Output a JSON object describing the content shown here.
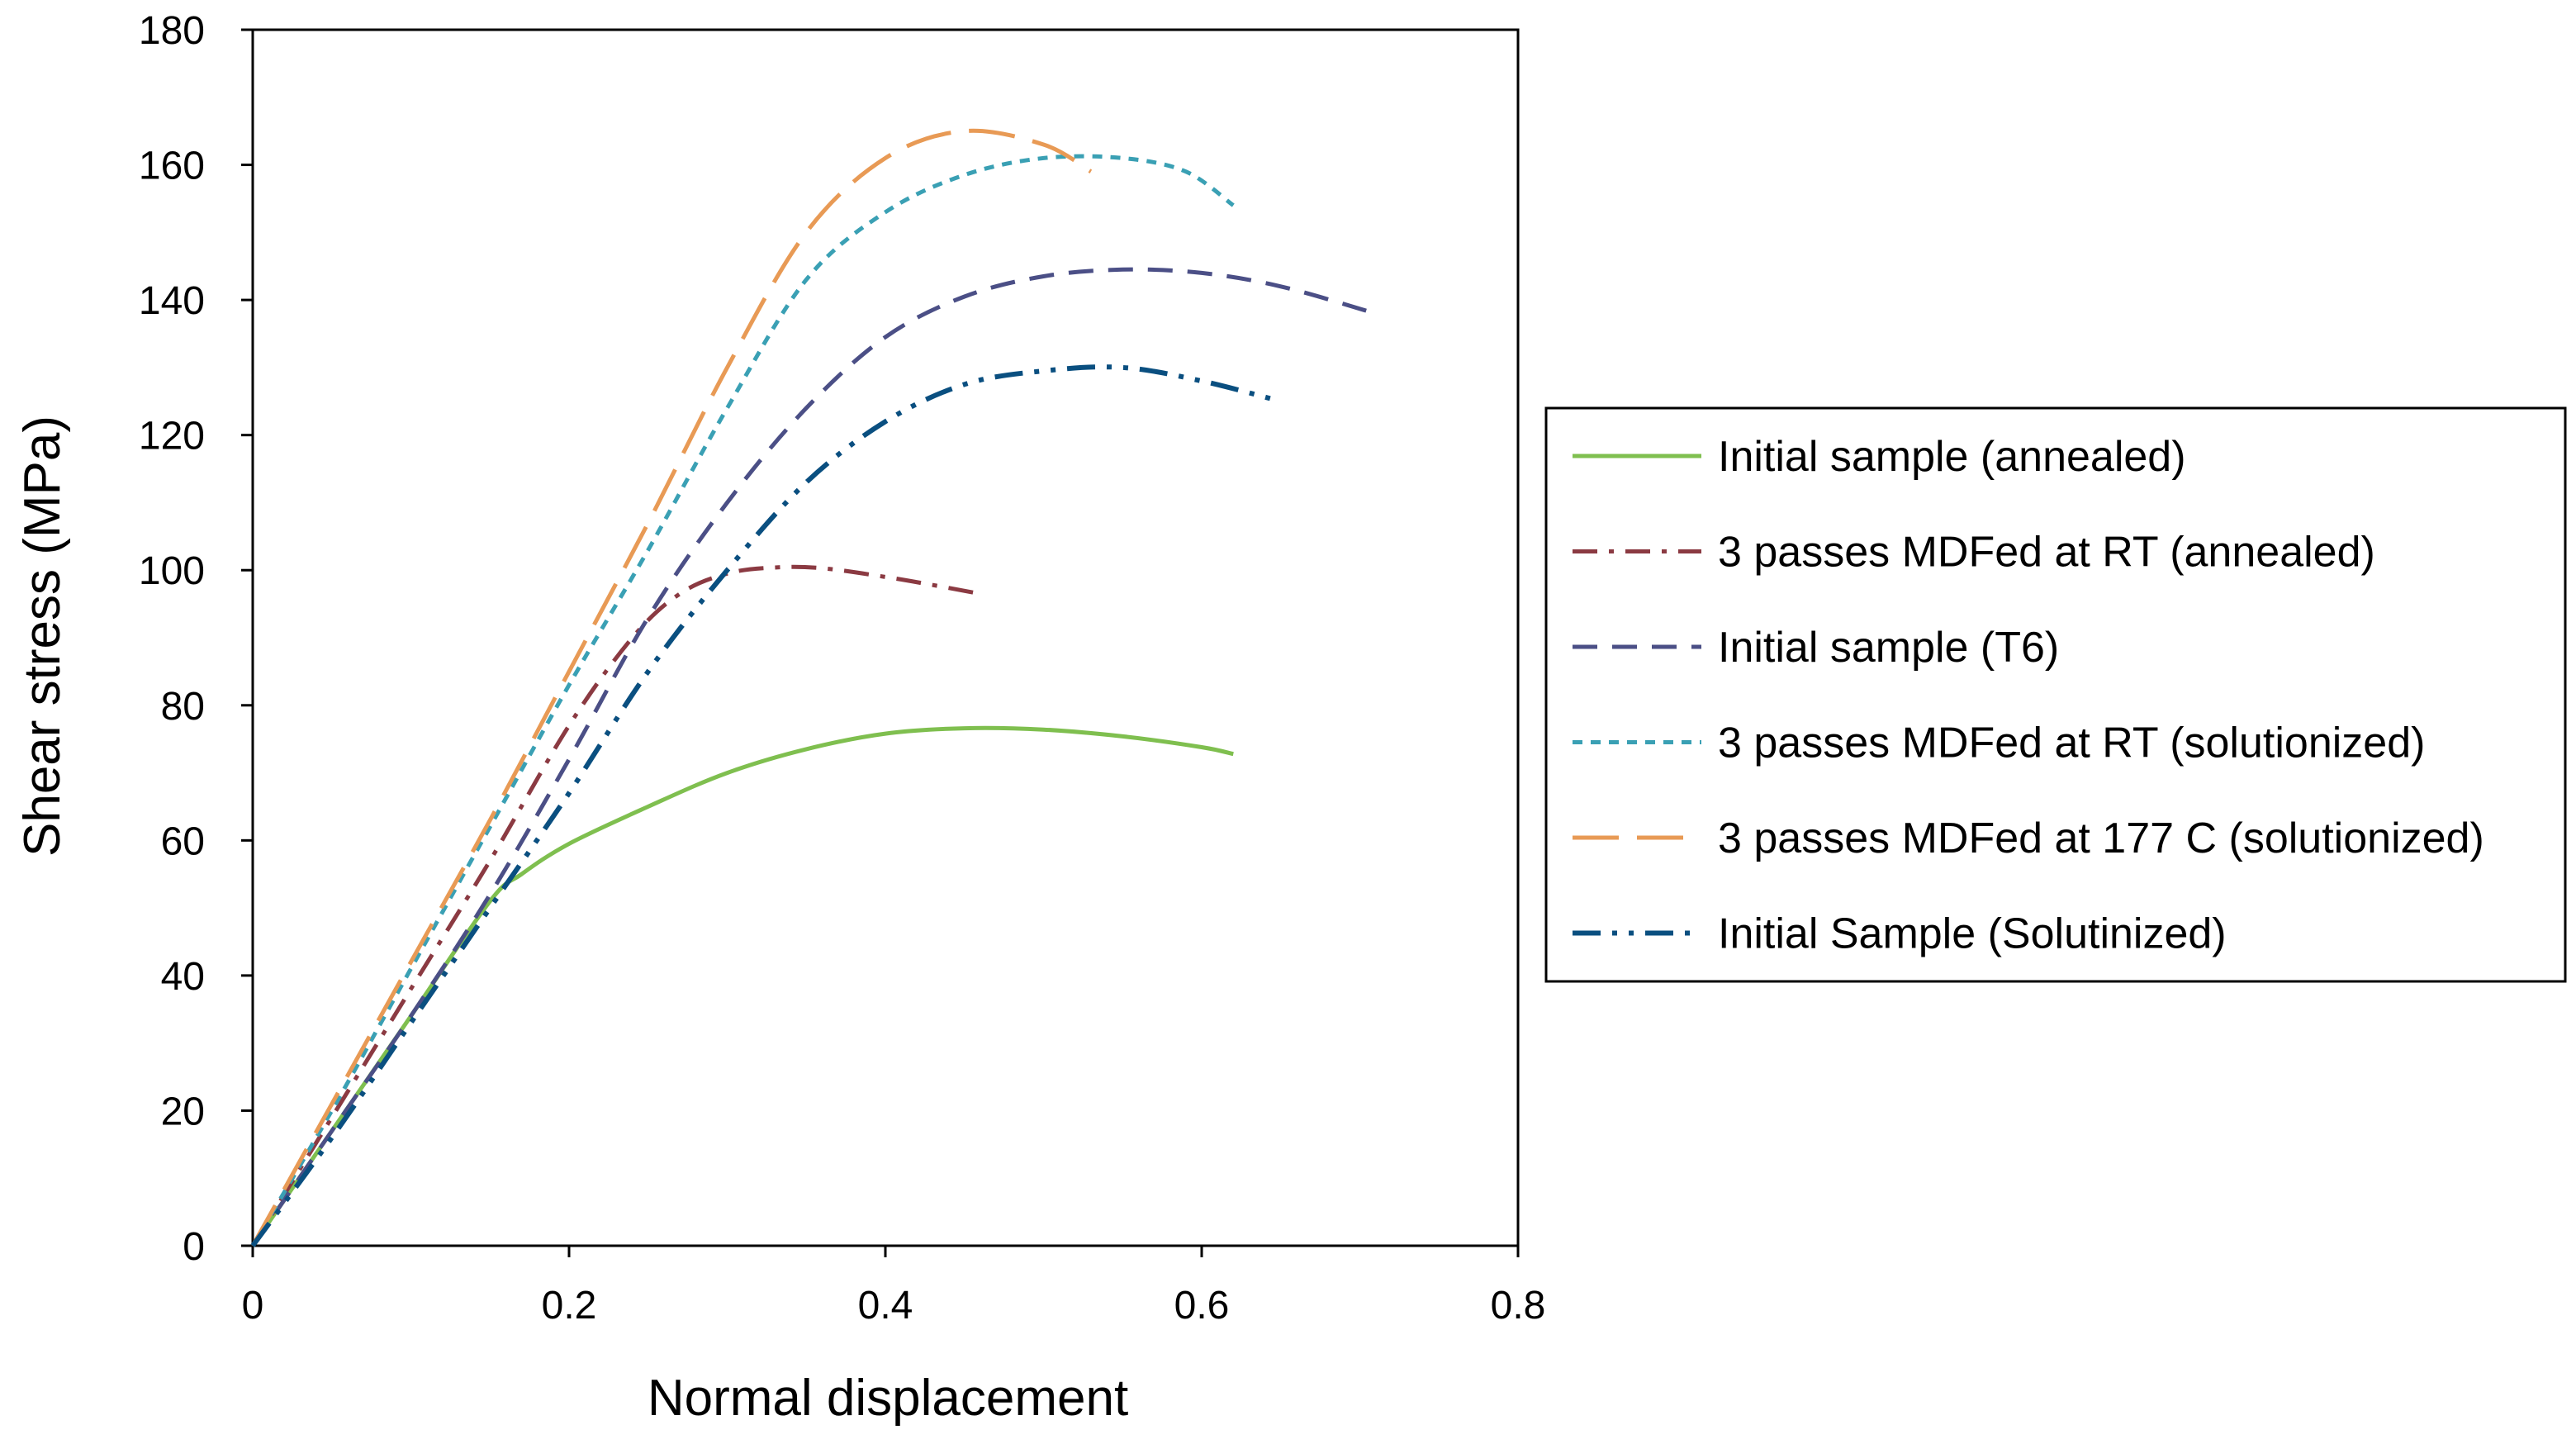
{
  "chart_data": {
    "type": "line",
    "title": "",
    "xlabel": "Normal displacement",
    "ylabel": "Shear stress (MPa)",
    "xlim": [
      0,
      0.8
    ],
    "ylim": [
      0,
      180
    ],
    "xticks": [
      0,
      0.2,
      0.4,
      0.6,
      0.8
    ],
    "yticks": [
      0,
      20,
      40,
      60,
      80,
      100,
      120,
      140,
      160,
      180
    ],
    "xtick_labels": [
      "0",
      "0.2",
      "0.4",
      "0.6",
      "0.8"
    ],
    "ytick_labels": [
      "0",
      "20",
      "40",
      "60",
      "80",
      "100",
      "120",
      "140",
      "160",
      "180"
    ],
    "grid": false,
    "legend_position": "right",
    "series": [
      {
        "name": "Initial sample (annealed)",
        "color": "#7fbf4f",
        "dash": "solid",
        "x": [
          0,
          0.05,
          0.1,
          0.15,
          0.17,
          0.2,
          0.25,
          0.3,
          0.35,
          0.4,
          0.45,
          0.5,
          0.55,
          0.6,
          0.62
        ],
        "y": [
          0,
          17,
          34,
          51,
          55,
          59.5,
          65,
          70,
          73.5,
          75.8,
          76.6,
          76.4,
          75.4,
          73.8,
          72.8
        ]
      },
      {
        "name": "3 passes MDFed at RT (annealed)",
        "color": "#8b3a42",
        "dash": "dashdot",
        "x": [
          0,
          0.05,
          0.1,
          0.15,
          0.2,
          0.24,
          0.27,
          0.3,
          0.33,
          0.36,
          0.4,
          0.43,
          0.46
        ],
        "y": [
          0,
          19,
          38,
          57,
          77,
          90,
          96.5,
          99.5,
          100.4,
          100.3,
          99,
          97.8,
          96.5
        ]
      },
      {
        "name": "Initial sample (T6)",
        "color": "#4b4f86",
        "dash": "dashed",
        "x": [
          0,
          0.05,
          0.1,
          0.15,
          0.2,
          0.25,
          0.3,
          0.35,
          0.4,
          0.45,
          0.5,
          0.55,
          0.6,
          0.65,
          0.71
        ],
        "y": [
          0,
          17,
          34,
          52,
          72,
          93,
          110,
          124,
          134.5,
          140.5,
          143.5,
          144.5,
          144,
          142,
          138
        ]
      },
      {
        "name": "3 passes MDFed at RT (solutionized)",
        "color": "#3aa0b4",
        "dash": "dotted",
        "x": [
          0,
          0.05,
          0.1,
          0.15,
          0.2,
          0.25,
          0.3,
          0.35,
          0.4,
          0.45,
          0.5,
          0.55,
          0.59,
          0.62
        ],
        "y": [
          0,
          20,
          41,
          62,
          83,
          103,
          124,
          143,
          153,
          158.5,
          161,
          161,
          159,
          154
        ]
      },
      {
        "name": "3 passes MDFed at 177 C (solutionized)",
        "color": "#e89a55",
        "dash": "longdash",
        "x": [
          0,
          0.05,
          0.1,
          0.15,
          0.2,
          0.25,
          0.3,
          0.35,
          0.4,
          0.45,
          0.5,
          0.53
        ],
        "y": [
          0,
          21,
          42,
          63,
          85,
          107,
          130,
          150,
          161,
          165,
          163,
          159
        ]
      },
      {
        "name": "Initial Sample (Solutinized)",
        "color": "#0a4f80",
        "dash": "dashdotdot",
        "x": [
          0,
          0.05,
          0.1,
          0.15,
          0.2,
          0.25,
          0.3,
          0.35,
          0.4,
          0.45,
          0.5,
          0.55,
          0.6,
          0.65
        ],
        "y": [
          0,
          16,
          33,
          50,
          67,
          85,
          100,
          113,
          122,
          127.5,
          129.5,
          130,
          128,
          125
        ]
      }
    ]
  }
}
